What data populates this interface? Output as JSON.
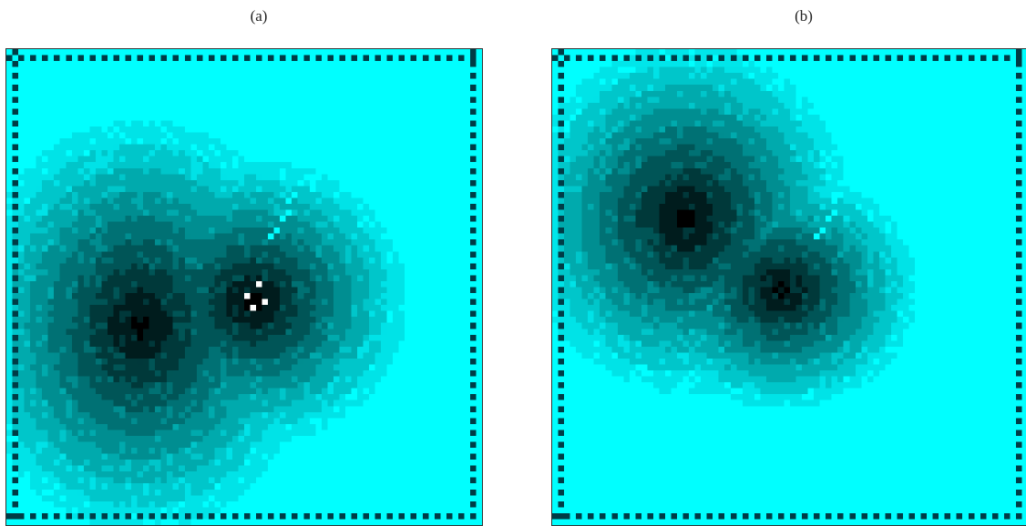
{
  "figure": {
    "panel_a_label": "(a)",
    "panel_b_label": "(b)"
  },
  "colors": {
    "background": "#ffffff",
    "bright": "#00ffff",
    "dark": "#000000",
    "marker": "#ffffff"
  },
  "panels": [
    {
      "id": "a",
      "has_white_markers": true
    },
    {
      "id": "b",
      "has_white_markers": false
    }
  ]
}
